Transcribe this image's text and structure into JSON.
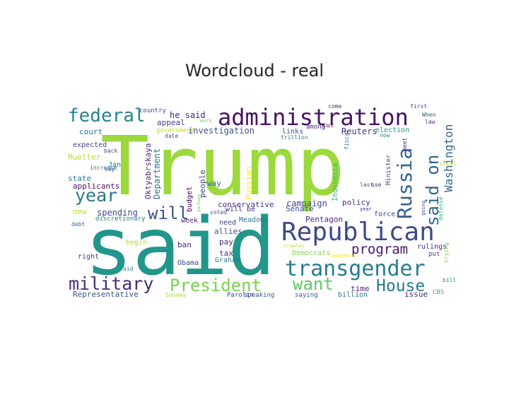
{
  "chart_data": {
    "type": "wordcloud",
    "title": "Wordcloud - real",
    "words": [
      {
        "text": "Trump",
        "color": "#9bd93c"
      },
      {
        "text": "said",
        "color": "#22968b"
      },
      {
        "text": "administration",
        "color": "#471164"
      },
      {
        "text": "Republican",
        "color": "#3e4a89"
      },
      {
        "text": "transgender",
        "color": "#287d8e"
      },
      {
        "text": "Russia",
        "color": "#355f8d"
      },
      {
        "text": "said on",
        "color": "#31688e"
      },
      {
        "text": "President",
        "color": "#7ad151"
      },
      {
        "text": "military",
        "color": "#472d7b"
      },
      {
        "text": "House",
        "color": "#2a788e"
      },
      {
        "text": "federal",
        "color": "#25848e"
      },
      {
        "text": "year",
        "color": "#2a788e"
      },
      {
        "text": "will",
        "color": "#3b528b"
      },
      {
        "text": "want",
        "color": "#5ec962"
      },
      {
        "text": "program",
        "color": "#48186a"
      },
      {
        "text": "Washington",
        "color": "#31688e"
      },
      {
        "text": "investigation",
        "color": "#3b528b"
      },
      {
        "text": "campaign",
        "color": "#3e4a89"
      },
      {
        "text": "conservative",
        "color": "#46327e"
      },
      {
        "text": "he said",
        "color": "#482878"
      },
      {
        "text": "court",
        "color": "#2a788e"
      },
      {
        "text": "expected",
        "color": "#414487"
      },
      {
        "text": "Mueller",
        "color": "#b5de2b"
      },
      {
        "text": "state",
        "color": "#287d8e"
      },
      {
        "text": "applicants",
        "color": "#471164"
      },
      {
        "text": "Jan",
        "color": "#2a788e"
      },
      {
        "text": "new",
        "color": "#bddf26"
      },
      {
        "text": "spending",
        "color": "#3e4a89"
      },
      {
        "text": "Reuters",
        "color": "#46327e"
      },
      {
        "text": "policy",
        "color": "#443983"
      },
      {
        "text": "election",
        "color": "#1f9a8a"
      },
      {
        "text": "Senate",
        "color": "#3b528b"
      },
      {
        "text": "Pentagon",
        "color": "#482878"
      },
      {
        "text": "Democrats",
        "color": "#86d549"
      },
      {
        "text": "time",
        "color": "#482878"
      },
      {
        "text": "issue",
        "color": "#482878"
      },
      {
        "text": "billion",
        "color": "#2c728e"
      },
      {
        "text": "Representative",
        "color": "#3b528b"
      },
      {
        "text": "Department",
        "color": "#2a788e"
      },
      {
        "text": "Oktyabrskaya",
        "color": "#482878"
      },
      {
        "text": "budget",
        "color": "#440154"
      },
      {
        "text": "Russian",
        "color": "#fde725"
      },
      {
        "text": "Indonesia",
        "color": "#35b779"
      },
      {
        "text": "Minister",
        "color": "#414487"
      },
      {
        "text": "defense",
        "color": "#35b779"
      },
      {
        "text": "appeal",
        "color": "#414487"
      },
      {
        "text": "government",
        "color": "#c2df23"
      },
      {
        "text": "country",
        "color": "#3e4a89"
      },
      {
        "text": "links",
        "color": "#3b528b"
      },
      {
        "text": "among",
        "color": "#472d7b"
      },
      {
        "text": "cut",
        "color": "#440154"
      },
      {
        "text": "way",
        "color": "#31688e"
      },
      {
        "text": "will be",
        "color": "#46327e"
      },
      {
        "text": "tax",
        "color": "#443983"
      },
      {
        "text": "pay",
        "color": "#482878"
      },
      {
        "text": "Graham",
        "color": "#2a788e"
      },
      {
        "text": "Obama",
        "color": "#3e4a89"
      },
      {
        "text": "ban",
        "color": "#482878"
      },
      {
        "text": "allies",
        "color": "#3b528b"
      },
      {
        "text": "Meadows",
        "color": "#2a788e"
      },
      {
        "text": "week",
        "color": "#482878"
      },
      {
        "text": "need",
        "color": "#414487"
      },
      {
        "text": "voted",
        "color": "#3b528b"
      },
      {
        "text": "people",
        "color": "#3e4a89"
      },
      {
        "text": "force",
        "color": "#3e4a89"
      },
      {
        "text": "rulings",
        "color": "#482878"
      },
      {
        "text": "put",
        "color": "#414487"
      },
      {
        "text": "trying",
        "color": "#7ad151"
      },
      {
        "text": "bill",
        "color": "#1f9a8a"
      },
      {
        "text": "CBS",
        "color": "#35b779"
      },
      {
        "text": "saying",
        "color": "#3b528b"
      },
      {
        "text": "Parolin",
        "color": "#3e4a89"
      },
      {
        "text": "speaking",
        "color": "#3b528b"
      },
      {
        "text": "Sunday",
        "color": "#a0da39"
      },
      {
        "text": "right",
        "color": "#414487"
      },
      {
        "text": "aid",
        "color": "#2a788e"
      },
      {
        "text": "begin",
        "color": "#b5de2b"
      },
      {
        "text": "debt",
        "color": "#31688e"
      },
      {
        "text": "discretionary",
        "color": "#2a788e"
      },
      {
        "text": "back",
        "color": "#3b528b"
      },
      {
        "text": "increase",
        "color": "#2a788e"
      },
      {
        "text": "say",
        "color": "#3e4a89"
      },
      {
        "text": "date",
        "color": "#3b528b"
      },
      {
        "text": "work",
        "color": "#7ad151"
      },
      {
        "text": "package",
        "color": "#7ad151"
      },
      {
        "text": "trillion",
        "color": "#2a788e"
      },
      {
        "text": "Crowley",
        "color": "#b5de2b"
      },
      {
        "text": "lawmakers",
        "color": "#fde725"
      },
      {
        "text": "last",
        "color": "#3b528b"
      },
      {
        "text": "use",
        "color": "#482878"
      },
      {
        "text": "meet",
        "color": "#472d7b"
      },
      {
        "text": "first",
        "color": "#3b528b"
      },
      {
        "text": "come",
        "color": "#482878"
      },
      {
        "text": "now",
        "color": "#2a788e"
      },
      {
        "text": "When",
        "color": "#3b528b"
      },
      {
        "text": "law",
        "color": "#472d7b"
      },
      {
        "text": "year",
        "color": "#482878"
      },
      {
        "text": "still",
        "color": "#b5de2b"
      },
      {
        "text": "going",
        "color": "#3b528b"
      },
      {
        "text": "fiscal",
        "color": "#2a788e"
      }
    ]
  }
}
